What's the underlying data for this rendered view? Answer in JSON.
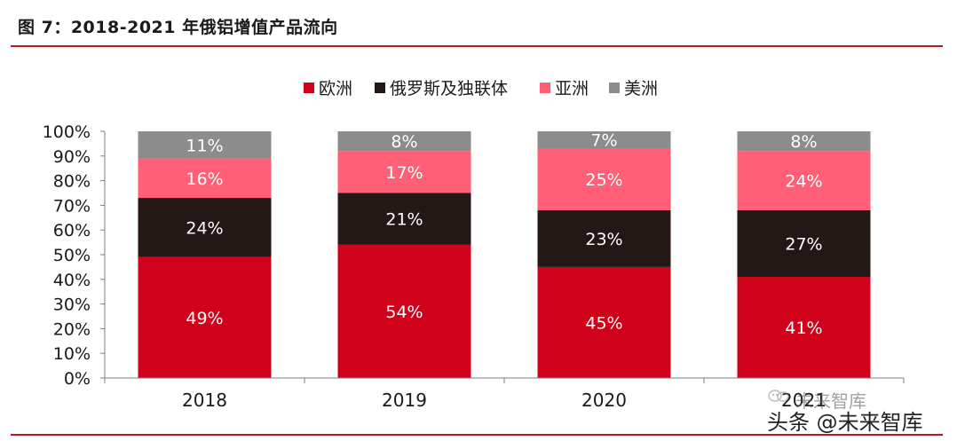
{
  "title": "图 7：2018-2021 年俄铝增值产品流向",
  "watermark": {
    "line1": "未来智库",
    "line2": "头条 @未来智库"
  },
  "chart_data": {
    "type": "bar",
    "stacked": true,
    "title": "图 7：2018-2021 年俄铝增值产品流向",
    "categories": [
      "2018",
      "2019",
      "2020",
      "2021"
    ],
    "series": [
      {
        "name": "欧洲",
        "color": "#d0021b",
        "values": [
          49,
          54,
          45,
          41
        ],
        "labels": [
          "49%",
          "54%",
          "45%",
          "41%"
        ]
      },
      {
        "name": "俄罗斯及独联体",
        "color": "#231815",
        "values": [
          24,
          21,
          23,
          27
        ],
        "labels": [
          "24%",
          "21%",
          "23%",
          "27%"
        ]
      },
      {
        "name": "亚洲",
        "color": "#ff6077",
        "values": [
          16,
          17,
          25,
          24
        ],
        "labels": [
          "16%",
          "17%",
          "25%",
          "24%"
        ]
      },
      {
        "name": "美洲",
        "color": "#8c8c8c",
        "values": [
          11,
          8,
          7,
          8
        ],
        "labels": [
          "11%",
          "8%",
          "7%",
          "8%"
        ]
      }
    ],
    "ylim": [
      0,
      100
    ],
    "yticks": [
      "0%",
      "10%",
      "20%",
      "30%",
      "40%",
      "50%",
      "60%",
      "70%",
      "80%",
      "90%",
      "100%"
    ],
    "xlabel": "",
    "ylabel": "",
    "legend_position": "top-center",
    "grid": false
  }
}
